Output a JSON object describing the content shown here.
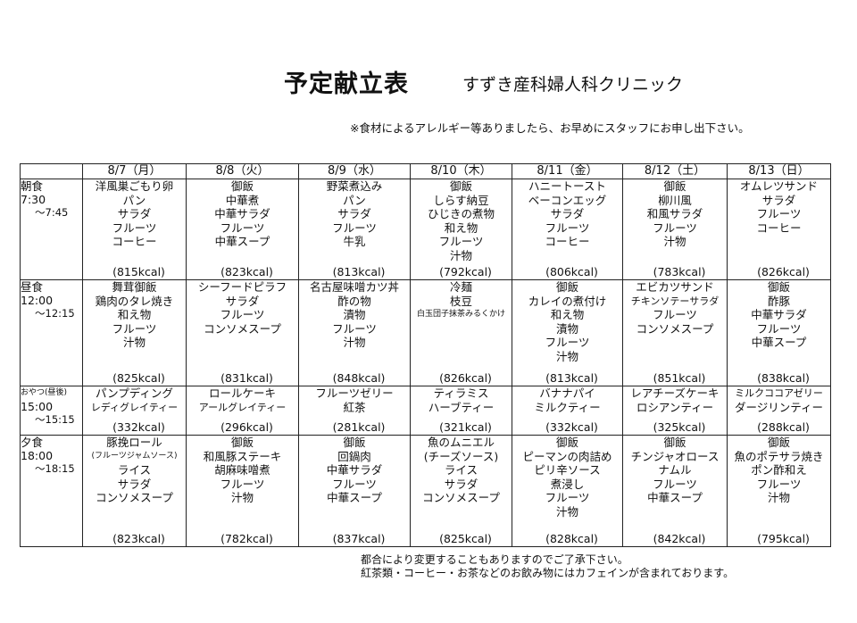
{
  "header": {
    "title": "予定献立表",
    "clinic": "すずき産科婦人科クリニック",
    "notice": "※食材によるアレルギー等ありましたら、お早めにスタッフにお申し出下さい。"
  },
  "days": [
    "8/7（月）",
    "8/8（火）",
    "8/9（水）",
    "8/10（木）",
    "8/11（金）",
    "8/12（土）",
    "8/13（日）"
  ],
  "meals": [
    {
      "id": "breakfast",
      "label": "朝食",
      "time_start": "7:30",
      "time_end": "～7:45",
      "cells": [
        {
          "items": [
            "洋風巣ごもり卵",
            "パン",
            "サラダ",
            "フルーツ",
            "コーヒー"
          ],
          "kcal": "(815kcal)"
        },
        {
          "items": [
            "御飯",
            "中華煮",
            "中華サラダ",
            "フルーツ",
            "中華スープ"
          ],
          "kcal": "(823kcal)"
        },
        {
          "items": [
            "野菜煮込み",
            "パン",
            "サラダ",
            "フルーツ",
            "牛乳"
          ],
          "kcal": "(813kcal)"
        },
        {
          "items": [
            "御飯",
            "しらす納豆",
            "ひじきの煮物",
            "和え物",
            "フルーツ",
            "汁物"
          ],
          "kcal": "(792kcal)"
        },
        {
          "items": [
            "ハニートースト",
            "ベーコンエッグ",
            "サラダ",
            "フルーツ",
            "コーヒー"
          ],
          "kcal": "(806kcal)"
        },
        {
          "items": [
            "御飯",
            "柳川風",
            "和風サラダ",
            "フルーツ",
            "汁物"
          ],
          "kcal": "(783kcal)"
        },
        {
          "items": [
            "オムレツサンド",
            "サラダ",
            "フルーツ",
            "コーヒー"
          ],
          "kcal": "(826kcal)"
        }
      ]
    },
    {
      "id": "lunch",
      "label": "昼食",
      "time_start": "12:00",
      "time_end": "～12:15",
      "cells": [
        {
          "items": [
            "舞茸御飯",
            "鶏肉のタレ焼き",
            "和え物",
            "フルーツ",
            "汁物"
          ],
          "kcal": "(825kcal)"
        },
        {
          "items": [
            "シーフードピラフ",
            "サラダ",
            "フルーツ",
            "コンソメスープ"
          ],
          "kcal": "(831kcal)"
        },
        {
          "items": [
            "名古屋味噌カツ丼",
            "酢の物",
            "漬物",
            "フルーツ",
            "汁物"
          ],
          "kcal": "(848kcal)"
        },
        {
          "items": [
            "冷麺",
            "枝豆",
            "白玉団子抹茶みるくかけ"
          ],
          "kcal": "(826kcal)"
        },
        {
          "items": [
            "御飯",
            "カレイの煮付け",
            "和え物",
            "漬物",
            "フルーツ",
            "汁物"
          ],
          "kcal": "(813kcal)"
        },
        {
          "items": [
            "エビカツサンド",
            "チキンソテーサラダ",
            "フルーツ",
            "コンソメスープ"
          ],
          "kcal": "(851kcal)"
        },
        {
          "items": [
            "御飯",
            "酢豚",
            "中華サラダ",
            "フルーツ",
            "中華スープ"
          ],
          "kcal": "(838kcal)"
        }
      ]
    },
    {
      "id": "snack",
      "label": "おやつ(昼後)",
      "time_start": "15:00",
      "time_end": "～15:15",
      "cells": [
        {
          "items": [
            "パンプディング",
            "レディグレイティー"
          ],
          "kcal": "(332kcal)"
        },
        {
          "items": [
            "ロールケーキ",
            "アールグレイティー"
          ],
          "kcal": "(296kcal)"
        },
        {
          "items": [
            "フルーツゼリー",
            "紅茶"
          ],
          "kcal": "(281kcal)"
        },
        {
          "items": [
            "ティラミス",
            "ハーブティー"
          ],
          "kcal": "(321kcal)"
        },
        {
          "items": [
            "バナナパイ",
            "ミルクティー"
          ],
          "kcal": "(332kcal)"
        },
        {
          "items": [
            "レアチーズケーキ",
            "ロシアンティー"
          ],
          "kcal": "(325kcal)"
        },
        {
          "items": [
            "ミルクココアゼリー",
            "ダージリンティー"
          ],
          "kcal": "(288kcal)"
        }
      ]
    },
    {
      "id": "dinner",
      "label": "夕食",
      "time_start": "18:00",
      "time_end": "～18:15",
      "cells": [
        {
          "items": [
            "豚挽ロール",
            "(フルーツジャムソース)",
            "ライス",
            "サラダ",
            "コンソメスープ"
          ],
          "kcal": "(823kcal)"
        },
        {
          "items": [
            "御飯",
            "和風豚ステーキ",
            "胡麻味噌煮",
            "フルーツ",
            "汁物"
          ],
          "kcal": "(782kcal)"
        },
        {
          "items": [
            "御飯",
            "回鍋肉",
            "中華サラダ",
            "フルーツ",
            "中華スープ"
          ],
          "kcal": "(837kcal)"
        },
        {
          "items": [
            "魚のムニエル",
            "(チーズソース)",
            "ライス",
            "サラダ",
            "コンソメスープ"
          ],
          "kcal": "(825kcal)"
        },
        {
          "items": [
            "御飯",
            "ピーマンの肉詰め",
            "ピリ辛ソース",
            "煮浸し",
            "フルーツ",
            "汁物"
          ],
          "kcal": "(828kcal)"
        },
        {
          "items": [
            "御飯",
            "チンジャオロース",
            "ナムル",
            "フルーツ",
            "中華スープ"
          ],
          "kcal": "(842kcal)"
        },
        {
          "items": [
            "御飯",
            "魚のポテサラ焼き",
            "ポン酢和え",
            "フルーツ",
            "汁物"
          ],
          "kcal": "(795kcal)"
        }
      ]
    }
  ],
  "footer": {
    "line1": "都合により変更することもありますのでご了承下さい。",
    "line2": "紅茶類・コーヒー・お茶などのお飲み物にはカフェインが含まれております。"
  }
}
